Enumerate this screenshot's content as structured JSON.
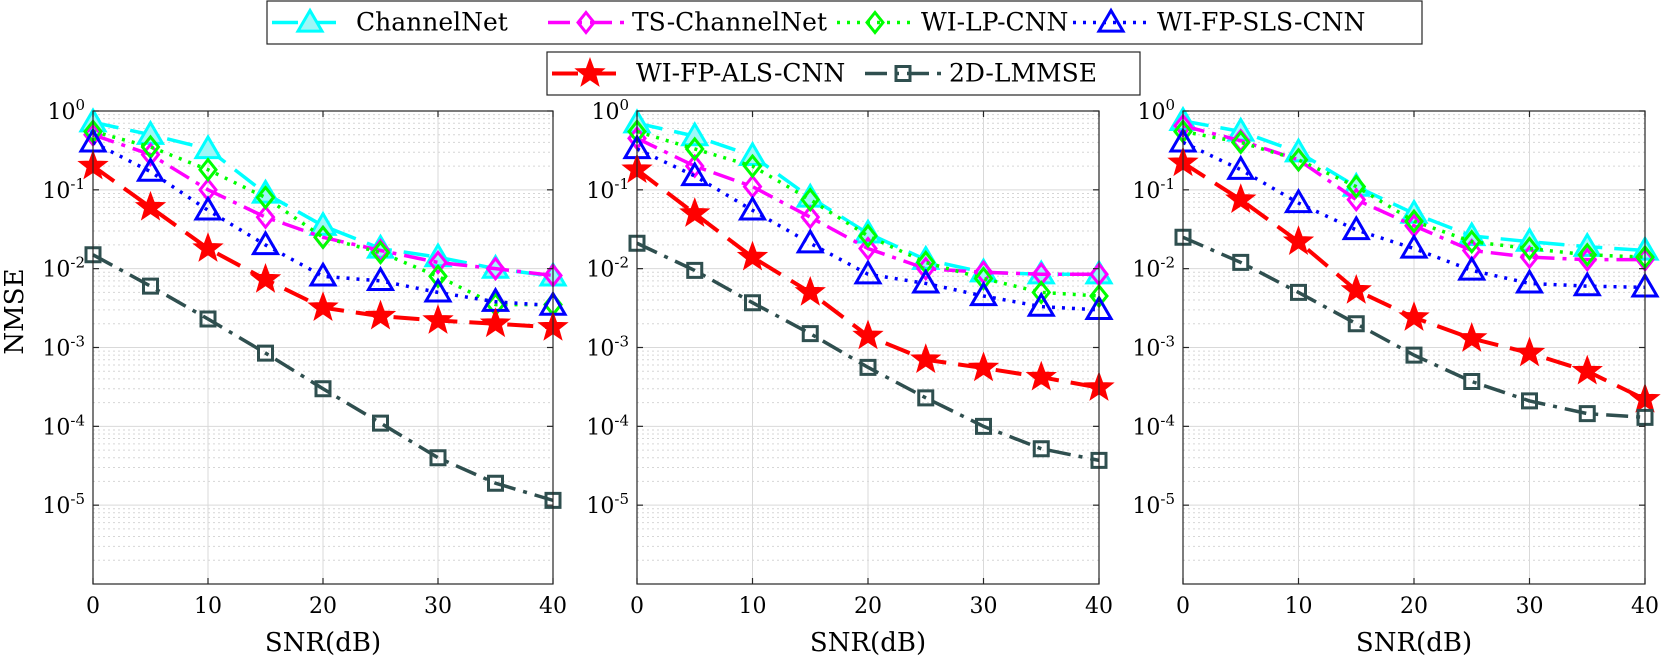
{
  "chart_data": [
    {
      "type": "line",
      "title": "",
      "xlabel": "SNR(dB)",
      "ylabel": "NMSE",
      "yscale": "log",
      "xlim": [
        0,
        40
      ],
      "ylim": [
        1e-06,
        1
      ],
      "x": [
        0,
        5,
        10,
        15,
        20,
        25,
        30,
        35,
        40
      ],
      "xticks": [
        "0",
        "10",
        "20",
        "30",
        "40"
      ],
      "yticks": [
        "10-5",
        "10-4",
        "10-3",
        "10-2",
        "10-1",
        "100"
      ],
      "grid": true,
      "series": [
        {
          "name": "ChannelNet",
          "values": [
            0.72,
            0.5,
            0.33,
            0.09,
            0.035,
            0.018,
            0.014,
            0.01,
            0.008
          ]
        },
        {
          "name": "TS-ChannelNet",
          "values": [
            0.5,
            0.28,
            0.1,
            0.045,
            0.025,
            0.017,
            0.012,
            0.01,
            0.0082
          ]
        },
        {
          "name": "WI-LP-CNN",
          "values": [
            0.55,
            0.35,
            0.18,
            0.08,
            0.025,
            0.016,
            0.008,
            0.0035,
            0.0035
          ]
        },
        {
          "name": "WI-FP-SLS-CNN",
          "values": [
            0.4,
            0.17,
            0.055,
            0.02,
            0.008,
            0.007,
            0.005,
            0.0038,
            0.0034
          ]
        },
        {
          "name": "WI-FP-ALS-CNN",
          "values": [
            0.2,
            0.06,
            0.018,
            0.0073,
            0.0032,
            0.0025,
            0.0022,
            0.002,
            0.0018
          ]
        },
        {
          "name": "2D-LMMSE",
          "values": [
            0.015,
            0.006,
            0.0023,
            0.00085,
            0.0003,
            0.00011,
            4e-05,
            1.9e-05,
            1.15e-05
          ]
        }
      ]
    },
    {
      "type": "line",
      "title": "",
      "xlabel": "SNR(dB)",
      "ylabel": "",
      "yscale": "log",
      "xlim": [
        0,
        40
      ],
      "ylim": [
        1e-06,
        1
      ],
      "x": [
        0,
        5,
        10,
        15,
        20,
        25,
        30,
        35,
        40
      ],
      "xticks": [
        "0",
        "10",
        "20",
        "30",
        "40"
      ],
      "yticks": [
        "10-5",
        "10-4",
        "10-3",
        "10-2",
        "10-1",
        "100"
      ],
      "grid": true,
      "series": [
        {
          "name": "ChannelNet",
          "values": [
            0.7,
            0.48,
            0.27,
            0.08,
            0.028,
            0.013,
            0.009,
            0.0085,
            0.0085
          ]
        },
        {
          "name": "TS-ChannelNet",
          "values": [
            0.45,
            0.2,
            0.11,
            0.045,
            0.018,
            0.01,
            0.009,
            0.0085,
            0.0085
          ]
        },
        {
          "name": "WI-LP-CNN",
          "values": [
            0.55,
            0.33,
            0.2,
            0.075,
            0.026,
            0.012,
            0.0075,
            0.005,
            0.0045
          ]
        },
        {
          "name": "WI-FP-SLS-CNN",
          "values": [
            0.33,
            0.15,
            0.055,
            0.021,
            0.0085,
            0.0065,
            0.0045,
            0.0033,
            0.003
          ]
        },
        {
          "name": "WI-FP-ALS-CNN",
          "values": [
            0.18,
            0.05,
            0.014,
            0.005,
            0.0014,
            0.0007,
            0.00055,
            0.00042,
            0.00031
          ]
        },
        {
          "name": "2D-LMMSE",
          "values": [
            0.021,
            0.0095,
            0.0037,
            0.0015,
            0.00056,
            0.00023,
            0.0001,
            5.2e-05,
            3.7e-05
          ]
        }
      ]
    },
    {
      "type": "line",
      "title": "",
      "xlabel": "SNR(dB)",
      "ylabel": "",
      "yscale": "log",
      "xlim": [
        0,
        40
      ],
      "ylim": [
        1e-06,
        1
      ],
      "x": [
        0,
        5,
        10,
        15,
        20,
        25,
        30,
        35,
        40
      ],
      "xticks": [
        "0",
        "10",
        "20",
        "30",
        "40"
      ],
      "yticks": [
        "10-5",
        "10-4",
        "10-3",
        "10-2",
        "10-1",
        "100"
      ],
      "grid": true,
      "series": [
        {
          "name": "ChannelNet",
          "values": [
            0.75,
            0.55,
            0.3,
            0.11,
            0.05,
            0.026,
            0.022,
            0.019,
            0.017
          ]
        },
        {
          "name": "TS-ChannelNet",
          "values": [
            0.65,
            0.42,
            0.24,
            0.075,
            0.035,
            0.017,
            0.014,
            0.013,
            0.013
          ]
        },
        {
          "name": "WI-LP-CNN",
          "values": [
            0.55,
            0.4,
            0.24,
            0.11,
            0.04,
            0.022,
            0.018,
            0.015,
            0.014
          ]
        },
        {
          "name": "WI-FP-SLS-CNN",
          "values": [
            0.4,
            0.18,
            0.068,
            0.031,
            0.018,
            0.0095,
            0.0065,
            0.006,
            0.0058
          ]
        },
        {
          "name": "WI-FP-ALS-CNN",
          "values": [
            0.22,
            0.075,
            0.022,
            0.0053,
            0.0024,
            0.0013,
            0.00085,
            0.0005,
            0.00022
          ]
        },
        {
          "name": "2D-LMMSE",
          "values": [
            0.025,
            0.012,
            0.005,
            0.002,
            0.0008,
            0.00037,
            0.00021,
            0.000145,
            0.00013
          ]
        }
      ]
    }
  ],
  "legend": {
    "placement": "top-center",
    "styles": [
      {
        "name": "ChannelNet",
        "color": "#00FFFF",
        "marker": "triangle",
        "dash": "dash"
      },
      {
        "name": "TS-ChannelNet",
        "color": "#FF00FF",
        "marker": "diamond",
        "dash": "dashdot"
      },
      {
        "name": "WI-LP-CNN",
        "color": "#00FF00",
        "marker": "diamond",
        "dash": "dot"
      },
      {
        "name": "WI-FP-SLS-CNN",
        "color": "#0000FF",
        "marker": "triangle",
        "dash": "dot"
      },
      {
        "name": "WI-FP-ALS-CNN",
        "color": "#FF0000",
        "marker": "star",
        "dash": "dash"
      },
      {
        "name": "2D-LMMSE",
        "color": "#2F4F4F",
        "marker": "square",
        "dash": "dashdot"
      }
    ]
  }
}
